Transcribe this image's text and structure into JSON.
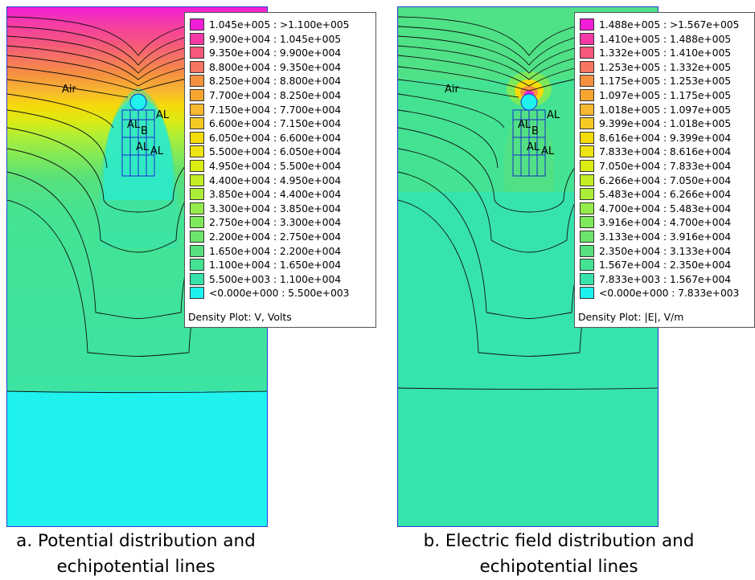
{
  "figure_a": {
    "legend_title": "Density Plot: V, Volts",
    "legend": [
      {
        "label": "1.045e+005 : >1.100e+005",
        "color": "#f21ed6"
      },
      {
        "label": "9.900e+004 : 1.045e+005",
        "color": "#f53aa8"
      },
      {
        "label": "9.350e+004 : 9.900e+004",
        "color": "#f5577d"
      },
      {
        "label": "8.800e+004 : 9.350e+004",
        "color": "#f57560"
      },
      {
        "label": "8.250e+004 : 8.800e+004",
        "color": "#f5913e"
      },
      {
        "label": "7.700e+004 : 8.250e+004",
        "color": "#f8a631"
      },
      {
        "label": "7.150e+004 : 7.700e+004",
        "color": "#f7b730"
      },
      {
        "label": "6.600e+004 : 7.150e+004",
        "color": "#f8c924"
      },
      {
        "label": "6.050e+004 : 6.600e+004",
        "color": "#f5da0a"
      },
      {
        "label": "5.500e+004 : 6.050e+004",
        "color": "#eee313"
      },
      {
        "label": "4.950e+004 : 5.500e+004",
        "color": "#d9ec14"
      },
      {
        "label": "4.400e+004 : 4.950e+004",
        "color": "#c2ee23"
      },
      {
        "label": "3.850e+004 : 4.400e+004",
        "color": "#abee3a"
      },
      {
        "label": "3.300e+004 : 3.850e+004",
        "color": "#93ec4a"
      },
      {
        "label": "2.750e+004 : 3.300e+004",
        "color": "#7ee95a"
      },
      {
        "label": "2.200e+004 : 2.750e+004",
        "color": "#6ce56a"
      },
      {
        "label": "1.650e+004 : 2.200e+004",
        "color": "#57e07d"
      },
      {
        "label": "1.100e+004 : 1.650e+004",
        "color": "#44e394"
      },
      {
        "label": "5.500e+003 : 1.100e+004",
        "color": "#37e3ac"
      },
      {
        "label": "<0.000e+000 : 5.500e+003",
        "color": "#1ff1ee"
      }
    ],
    "labels": {
      "air": "Air",
      "al": "AL",
      "b": "B"
    },
    "caption_line1": "a. Potential distribution and",
    "caption_line2": "echipotential lines"
  },
  "figure_b": {
    "legend_title": "Density Plot: |E|, V/m",
    "legend": [
      {
        "label": "1.488e+005 : >1.567e+005",
        "color": "#f21ed6"
      },
      {
        "label": "1.410e+005 : 1.488e+005",
        "color": "#f53aa8"
      },
      {
        "label": "1.332e+005 : 1.410e+005",
        "color": "#f5577d"
      },
      {
        "label": "1.253e+005 : 1.332e+005",
        "color": "#f57560"
      },
      {
        "label": "1.175e+005 : 1.253e+005",
        "color": "#f5913e"
      },
      {
        "label": "1.097e+005 : 1.175e+005",
        "color": "#f8a631"
      },
      {
        "label": "1.018e+005 : 1.097e+005",
        "color": "#f7b730"
      },
      {
        "label": "9.399e+004 : 1.018e+005",
        "color": "#f8c924"
      },
      {
        "label": "8.616e+004 : 9.399e+004",
        "color": "#f5da0a"
      },
      {
        "label": "7.833e+004 : 8.616e+004",
        "color": "#eee313"
      },
      {
        "label": "7.050e+004 : 7.833e+004",
        "color": "#d9ec14"
      },
      {
        "label": "6.266e+004 : 7.050e+004",
        "color": "#c2ee23"
      },
      {
        "label": "5.483e+004 : 6.266e+004",
        "color": "#abee3a"
      },
      {
        "label": "4.700e+004 : 5.483e+004",
        "color": "#93ec4a"
      },
      {
        "label": "3.916e+004 : 4.700e+004",
        "color": "#7ee95a"
      },
      {
        "label": "3.133e+004 : 3.916e+004",
        "color": "#6ce56a"
      },
      {
        "label": "2.350e+004 : 3.133e+004",
        "color": "#57e07d"
      },
      {
        "label": "1.567e+004 : 2.350e+004",
        "color": "#44e394"
      },
      {
        "label": "7.833e+003 : 1.567e+004",
        "color": "#37e3ac"
      },
      {
        "label": "<0.000e+000 : 7.833e+003",
        "color": "#1ff1ee"
      }
    ],
    "labels": {
      "air": "Air",
      "al": "AL",
      "b": "B"
    },
    "caption_line1": "b. Electric field distribution and",
    "caption_line2": "echipotential lines"
  }
}
